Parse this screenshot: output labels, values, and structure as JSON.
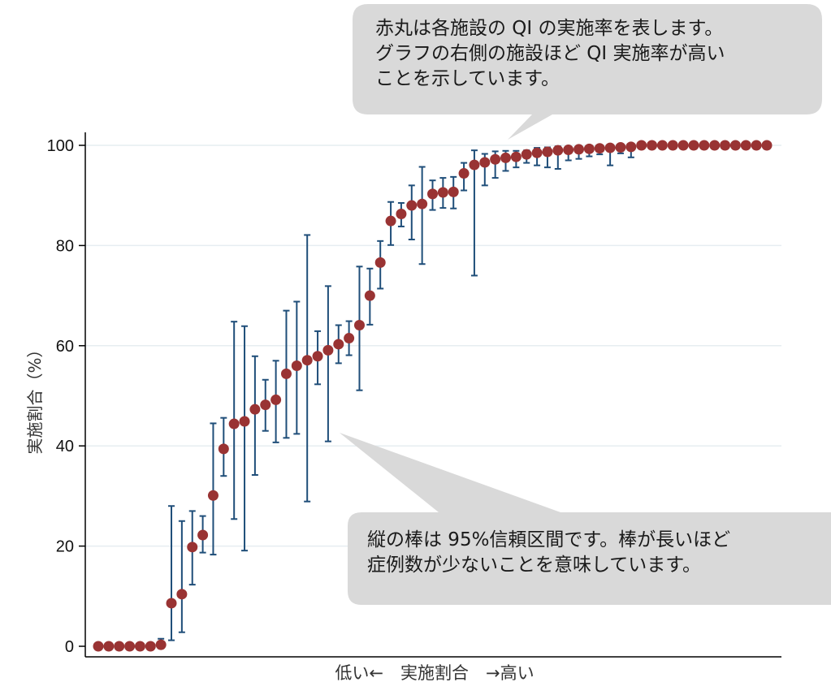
{
  "chart_data": {
    "type": "scatter",
    "ylabel": "実施割合（%）",
    "xlabel": "低い←　実施割合　→高い",
    "ylim": [
      0,
      100
    ],
    "yticks": [
      0,
      20,
      40,
      60,
      80,
      100
    ],
    "grid": true,
    "colors": {
      "point": "#993333",
      "errorbar": "#1f4e79",
      "grid": "#e6edf1",
      "callout": "#d9d9d9"
    },
    "points": [
      {
        "y": 0,
        "lo": 0,
        "hi": 0
      },
      {
        "y": 0,
        "lo": 0,
        "hi": 0
      },
      {
        "y": 0,
        "lo": 0,
        "hi": 0
      },
      {
        "y": 0,
        "lo": 0,
        "hi": 0
      },
      {
        "y": 0,
        "lo": 0,
        "hi": 0
      },
      {
        "y": 0,
        "lo": 0,
        "hi": 0
      },
      {
        "y": 0.3,
        "lo": 0,
        "hi": 1.5
      },
      {
        "y": 8.6,
        "lo": 1.2,
        "hi": 28
      },
      {
        "y": 10.4,
        "lo": 2.8,
        "hi": 25
      },
      {
        "y": 19.8,
        "lo": 12.3,
        "hi": 27
      },
      {
        "y": 22.2,
        "lo": 18.7,
        "hi": 26
      },
      {
        "y": 30.1,
        "lo": 18.3,
        "hi": 44.5
      },
      {
        "y": 39.4,
        "lo": 34,
        "hi": 45.6
      },
      {
        "y": 44.4,
        "lo": 25.4,
        "hi": 64.8
      },
      {
        "y": 44.9,
        "lo": 19.1,
        "hi": 63.9
      },
      {
        "y": 47.3,
        "lo": 34.2,
        "hi": 57.9
      },
      {
        "y": 48.2,
        "lo": 43,
        "hi": 53.2
      },
      {
        "y": 49.2,
        "lo": 40.7,
        "hi": 57
      },
      {
        "y": 54.4,
        "lo": 41.6,
        "hi": 67
      },
      {
        "y": 56,
        "lo": 42.4,
        "hi": 68.8
      },
      {
        "y": 57.1,
        "lo": 28.9,
        "hi": 82.1
      },
      {
        "y": 57.9,
        "lo": 52.3,
        "hi": 62.9
      },
      {
        "y": 59.1,
        "lo": 40.9,
        "hi": 71.9
      },
      {
        "y": 60.3,
        "lo": 56.5,
        "hi": 64.1
      },
      {
        "y": 61.5,
        "lo": 58.1,
        "hi": 64.9
      },
      {
        "y": 64.1,
        "lo": 51.1,
        "hi": 75.8
      },
      {
        "y": 70,
        "lo": 64.2,
        "hi": 75.4
      },
      {
        "y": 76.6,
        "lo": 71.4,
        "hi": 80.9
      },
      {
        "y": 84.9,
        "lo": 80.1,
        "hi": 88.7
      },
      {
        "y": 86.3,
        "lo": 83.8,
        "hi": 88.5
      },
      {
        "y": 88,
        "lo": 81.2,
        "hi": 92
      },
      {
        "y": 88.3,
        "lo": 76.3,
        "hi": 95.7
      },
      {
        "y": 90.3,
        "lo": 87.1,
        "hi": 93
      },
      {
        "y": 90.6,
        "lo": 87.5,
        "hi": 93.5
      },
      {
        "y": 90.7,
        "lo": 87.4,
        "hi": 93.7
      },
      {
        "y": 94.4,
        "lo": 91,
        "hi": 96.5
      },
      {
        "y": 96.1,
        "lo": 74,
        "hi": 99
      },
      {
        "y": 96.6,
        "lo": 92,
        "hi": 98.3
      },
      {
        "y": 97.2,
        "lo": 93.5,
        "hi": 98.8
      },
      {
        "y": 97.5,
        "lo": 94.9,
        "hi": 98.9
      },
      {
        "y": 97.7,
        "lo": 95.6,
        "hi": 98.9
      },
      {
        "y": 98.2,
        "lo": 96.5,
        "hi": 99
      },
      {
        "y": 98.5,
        "lo": 96,
        "hi": 99.5
      },
      {
        "y": 98.7,
        "lo": 95.6,
        "hi": 99.6
      },
      {
        "y": 99,
        "lo": 95.3,
        "hi": 99.8
      },
      {
        "y": 99.1,
        "lo": 97,
        "hi": 99.7
      },
      {
        "y": 99.2,
        "lo": 97.3,
        "hi": 99.8
      },
      {
        "y": 99.3,
        "lo": 97.8,
        "hi": 99.8
      },
      {
        "y": 99.4,
        "lo": 98.2,
        "hi": 99.9
      },
      {
        "y": 99.5,
        "lo": 96,
        "hi": 99.9
      },
      {
        "y": 99.6,
        "lo": 98.4,
        "hi": 99.9
      },
      {
        "y": 99.7,
        "lo": 97.6,
        "hi": 100
      },
      {
        "y": 100,
        "lo": 100,
        "hi": 100
      },
      {
        "y": 100,
        "lo": 100,
        "hi": 100
      },
      {
        "y": 100,
        "lo": 100,
        "hi": 100
      },
      {
        "y": 100,
        "lo": 100,
        "hi": 100
      },
      {
        "y": 100,
        "lo": 100,
        "hi": 100
      },
      {
        "y": 100,
        "lo": 100,
        "hi": 100
      },
      {
        "y": 100,
        "lo": 100,
        "hi": 100
      },
      {
        "y": 100,
        "lo": 100,
        "hi": 100
      },
      {
        "y": 100,
        "lo": 100,
        "hi": 100
      },
      {
        "y": 100,
        "lo": 100,
        "hi": 100
      },
      {
        "y": 100,
        "lo": 100,
        "hi": 100
      },
      {
        "y": 100,
        "lo": 100,
        "hi": 100
      },
      {
        "y": 100,
        "lo": 100,
        "hi": 100
      }
    ]
  },
  "callouts": {
    "top": {
      "line1": "赤丸は各施設の QI の実施率を表します。",
      "line2": "グラフの右側の施設ほど QI 実施率が高い",
      "line3": "ことを示しています。"
    },
    "bottom": {
      "line1": "縦の棒は 95%信頼区間です。棒が長いほど",
      "line2": "症例数が少ないことを意味しています。"
    }
  }
}
